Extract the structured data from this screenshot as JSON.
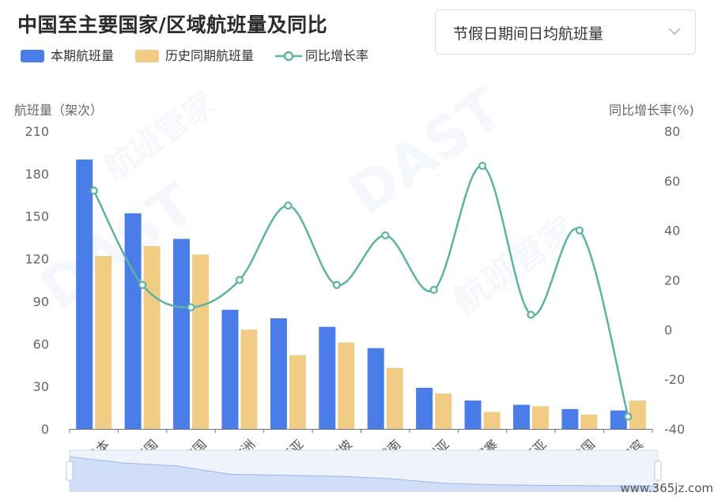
{
  "title": "中国至主要国家/区域航班量及同比",
  "selector": {
    "value": "节假日期间日均航班量",
    "icon": "chevron-down-icon"
  },
  "legend": [
    {
      "label": "本期航班量",
      "color": "#4a7de8",
      "type": "bar"
    },
    {
      "label": "历史同期航班量",
      "color": "#f0cc85",
      "type": "bar"
    },
    {
      "label": "同比增长率",
      "color": "#5db3a3",
      "type": "line"
    }
  ],
  "watermark": [
    "DAST",
    "航班管家"
  ],
  "credit": "www.365jz.com",
  "chart_data": {
    "type": "bar",
    "categories": [
      "日本",
      "泰国",
      "韩国",
      "欧洲",
      "马来西亚",
      "新加坡",
      "越南",
      "澳大利亚",
      "柬埔寨",
      "印度尼西亚",
      "美国",
      "菲律宾"
    ],
    "series": [
      {
        "name": "本期航班量",
        "values": [
          190,
          152,
          134,
          84,
          78,
          72,
          57,
          29,
          20,
          17,
          14,
          13
        ],
        "color": "#4a7de8"
      },
      {
        "name": "历史同期航班量",
        "values": [
          122,
          129,
          123,
          70,
          52,
          61,
          43,
          25,
          12,
          16,
          10,
          20
        ],
        "color": "#f0cc85"
      }
    ],
    "line_series": {
      "name": "同比增长率",
      "values": [
        56,
        18,
        9,
        20,
        50,
        18,
        38,
        16,
        66,
        6,
        40,
        -35
      ],
      "color": "#5db3a3"
    },
    "ylabel": "航班量（架次）",
    "ylim": [
      0,
      210
    ],
    "yticks": [
      0,
      30,
      60,
      90,
      120,
      150,
      180,
      210
    ],
    "y2label": "同比增长率(%)",
    "y2lim": [
      -40,
      80
    ],
    "y2ticks": [
      -40,
      -20,
      0,
      20,
      40,
      60,
      80
    ],
    "grid": false,
    "legend_position": "top-left",
    "datazoom": true
  }
}
